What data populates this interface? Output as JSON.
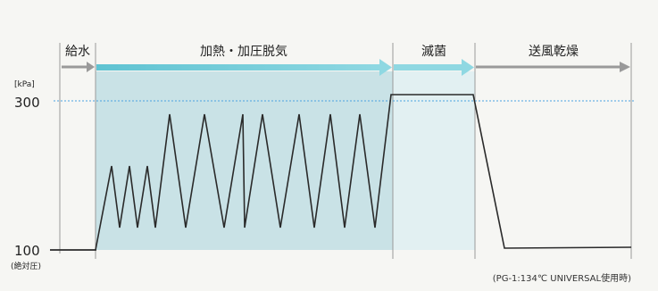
{
  "diagram": {
    "phases": [
      {
        "label": "給水"
      },
      {
        "label": "加熱・加圧脱気"
      },
      {
        "label": "滅菌"
      },
      {
        "label": "送風乾燥"
      }
    ],
    "y_axis": {
      "unit": "[kPa]",
      "tick_high": "300",
      "tick_low": "100",
      "tick_low_note": "(絶対圧)"
    },
    "footnote": "(PG-1:134℃ UNIVERSAL使用時)",
    "colors": {
      "heating_fill": "#c9e2e6",
      "sterilize_fill": "#e2f0f2",
      "arrow_cyan": "#7fcfda",
      "arrow_gray": "#9a9a9a",
      "dotted_line": "#4aa3e0",
      "curve": "#2a2a2a",
      "baseline": "#333333"
    }
  }
}
